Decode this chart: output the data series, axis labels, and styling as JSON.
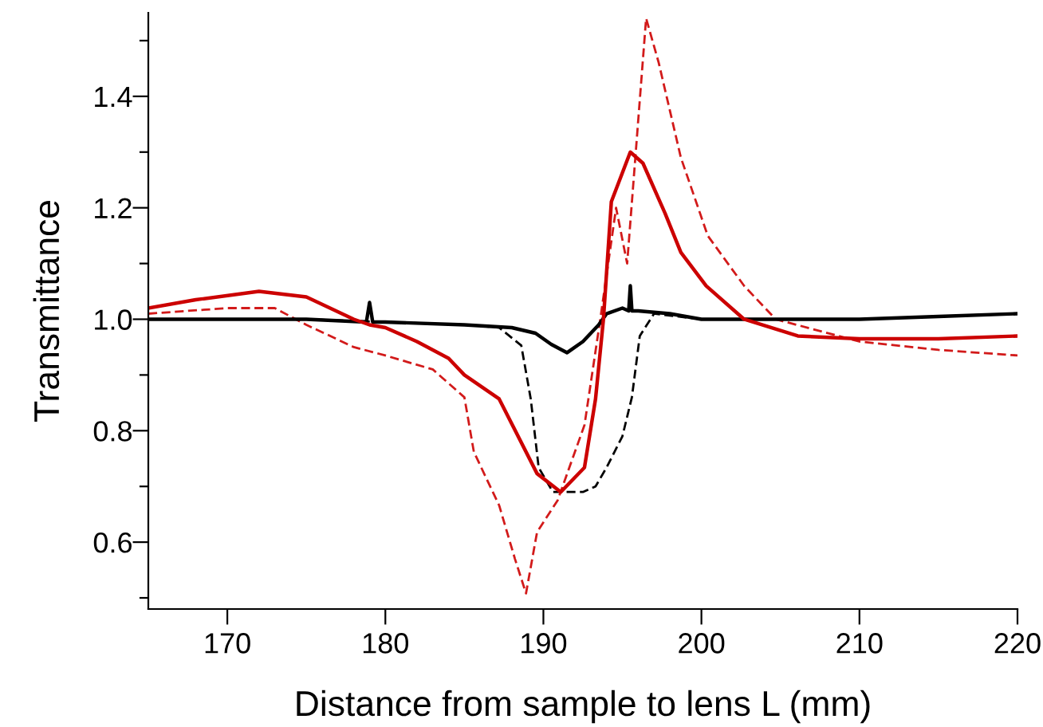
{
  "chart_data": {
    "type": "line",
    "xlabel": "Distance from sample to lens L (mm)",
    "ylabel": "Transmittance",
    "xlim": [
      165,
      220
    ],
    "ylim": [
      0.48,
      1.55
    ],
    "xticks": [
      170,
      180,
      190,
      200,
      210,
      220
    ],
    "yticks": [
      {
        "value": 0.5,
        "label": null
      },
      {
        "value": 0.6,
        "label": "0.6"
      },
      {
        "value": 0.7,
        "label": null
      },
      {
        "value": 0.8,
        "label": "0.8"
      },
      {
        "value": 0.9,
        "label": null
      },
      {
        "value": 1.0,
        "label": "1.0"
      },
      {
        "value": 1.1,
        "label": null
      },
      {
        "value": 1.2,
        "label": "1.2"
      },
      {
        "value": 1.3,
        "label": null
      },
      {
        "value": 1.4,
        "label": "1.4"
      },
      {
        "value": 1.5,
        "label": null
      }
    ],
    "marker": "none",
    "series": [
      {
        "color": "#000000",
        "line_style": "dashed",
        "x": [
          165,
          170,
          175,
          180,
          185,
          187.2,
          188.6,
          189.2,
          189.7,
          190.6,
          191.5,
          192.5,
          193.3,
          194.0,
          195.0,
          195.6,
          196.1,
          197.0,
          200,
          205,
          210,
          215,
          220
        ],
        "values": [
          1.0,
          1.0,
          1.0,
          0.995,
          0.99,
          0.985,
          0.953,
          0.857,
          0.734,
          0.69,
          0.69,
          0.69,
          0.7,
          0.734,
          0.79,
          0.86,
          0.97,
          1.01,
          1.0,
          1.0,
          1.0,
          1.005,
          1.01
        ]
      },
      {
        "color": "#d21a1a",
        "line_style": "dashed",
        "x": [
          165,
          170,
          173,
          175,
          178,
          180,
          183,
          185,
          185.6,
          187.2,
          188.2,
          188.9,
          189.6,
          190.9,
          192.6,
          193.6,
          194.6,
          195.3,
          196.5,
          197.3,
          198.7,
          200.4,
          202.7,
          204.7,
          210,
          215,
          220
        ],
        "values": [
          1.01,
          1.02,
          1.02,
          0.99,
          0.95,
          0.935,
          0.91,
          0.86,
          0.762,
          0.666,
          0.57,
          0.508,
          0.618,
          0.675,
          0.81,
          1.0,
          1.2,
          1.1,
          1.54,
          1.46,
          1.29,
          1.15,
          1.06,
          1.0,
          0.96,
          0.945,
          0.935
        ]
      },
      {
        "color": "#000000",
        "line_style": "solid",
        "x": [
          165,
          170,
          175,
          178.8,
          179.0,
          179.2,
          180,
          185,
          188,
          189.5,
          190.5,
          191.5,
          192.5,
          193.5,
          194,
          195,
          195.4,
          195.5,
          195.6,
          196,
          198,
          200,
          205,
          210,
          215,
          220
        ],
        "values": [
          1.0,
          1.0,
          1.0,
          0.995,
          1.03,
          0.995,
          0.995,
          0.99,
          0.985,
          0.975,
          0.955,
          0.94,
          0.96,
          0.99,
          1.01,
          1.02,
          1.015,
          1.06,
          1.015,
          1.015,
          1.01,
          1.0,
          1.0,
          1.0,
          1.005,
          1.01
        ]
      },
      {
        "color": "#cc0000",
        "line_style": "solid",
        "x": [
          165,
          168,
          172,
          175,
          178,
          179,
          180,
          182,
          184,
          185,
          187.2,
          189.6,
          191.1,
          192.6,
          193.3,
          193.8,
          194.3,
          195.5,
          196.3,
          197.7,
          198.7,
          200.3,
          202.7,
          206.1,
          210,
          215,
          220
        ],
        "values": [
          1.02,
          1.035,
          1.05,
          1.04,
          1.0,
          0.99,
          0.985,
          0.96,
          0.93,
          0.9,
          0.857,
          0.723,
          0.69,
          0.734,
          0.857,
          1.0,
          1.211,
          1.3,
          1.28,
          1.19,
          1.12,
          1.06,
          1.0,
          0.97,
          0.965,
          0.965,
          0.97
        ]
      }
    ]
  }
}
